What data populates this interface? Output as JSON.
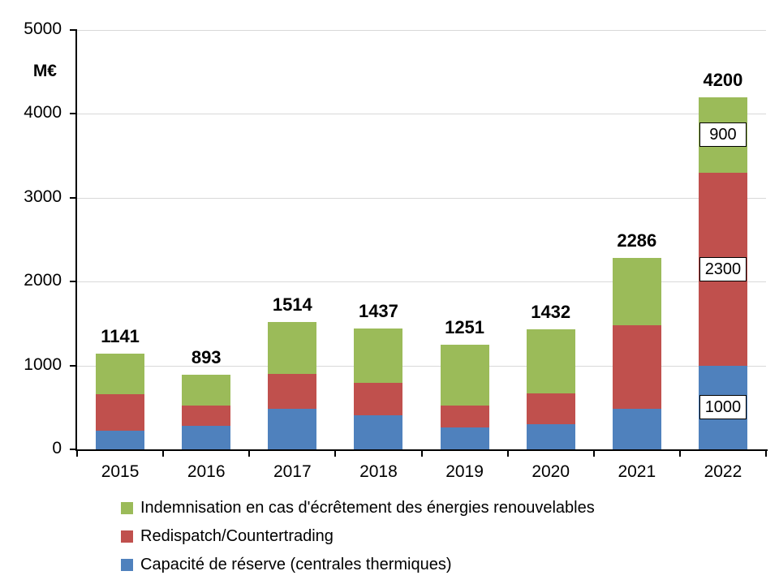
{
  "chart_data": {
    "type": "bar",
    "stacked": true,
    "title": "",
    "unit_label": "M€",
    "categories": [
      "2015",
      "2016",
      "2017",
      "2018",
      "2019",
      "2020",
      "2021",
      "2022"
    ],
    "totals": [
      "1141",
      "893",
      "1514",
      "1437",
      "1251",
      "1432",
      "2286",
      "4200"
    ],
    "series": [
      {
        "name": "Capacité de réserve (centrales thermiques)",
        "color": "#4F81BD",
        "values": [
          223,
          285,
          480,
          405,
          258,
          298,
          480,
          1000
        ],
        "segment_labels": [
          null,
          null,
          null,
          null,
          null,
          null,
          null,
          "1000"
        ]
      },
      {
        "name": "Redispatch/Countertrading",
        "color": "#C0504D",
        "values": [
          432,
          237,
          417,
          385,
          267,
          369,
          1000,
          2300
        ],
        "segment_labels": [
          null,
          null,
          null,
          null,
          null,
          null,
          null,
          "2300"
        ]
      },
      {
        "name": "Indemnisation en cas d'écrêtement des énergies renouvelables",
        "color": "#9BBB59",
        "values": [
          486,
          371,
          617,
          647,
          726,
          765,
          806,
          900
        ],
        "segment_labels": [
          null,
          null,
          null,
          null,
          null,
          null,
          null,
          "900"
        ]
      }
    ],
    "y_axis": {
      "min": 0,
      "max": 5000,
      "tick_interval": 1000,
      "tick_labels": [
        "0",
        "1000",
        "2000",
        "3000",
        "4000",
        "5000"
      ]
    },
    "legend_position": "bottom-left",
    "legend_entries": [
      "Indemnisation en cas d'écrêtement des énergies renouvelables",
      "Redispatch/Countertrading",
      "Capacité de réserve (centrales thermiques)"
    ],
    "grid": true,
    "gridline_color": "#D9D9D9",
    "axis_color": "#000000",
    "label_box_background": "#FFFFFF",
    "label_box_border": "#000000"
  }
}
